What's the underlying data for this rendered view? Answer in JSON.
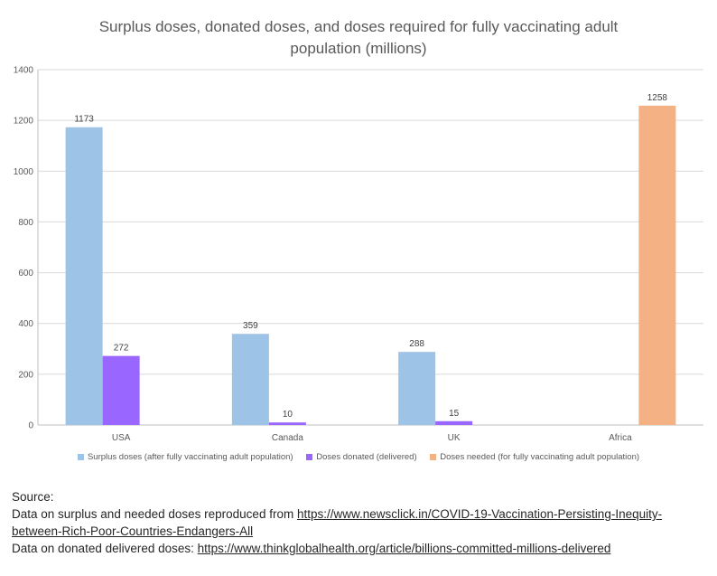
{
  "chart_data": {
    "type": "bar",
    "title_line1": "Surplus doses, donated doses, and doses required for fully vaccinating adult",
    "title_line2": "population (millions)",
    "categories": [
      "USA",
      "Canada",
      "UK",
      "Africa"
    ],
    "series": [
      {
        "name": "Surplus doses (after fully vaccinating adult population)",
        "color": "#9DC3E6",
        "values": [
          1173,
          359,
          288,
          null
        ]
      },
      {
        "name": "Doses donated (delivered)",
        "color": "#9966FF",
        "values": [
          272,
          10,
          15,
          null
        ]
      },
      {
        "name": "Doses needed (for fully vaccinating adult population)",
        "color": "#F4B183",
        "values": [
          null,
          null,
          null,
          1258
        ]
      }
    ],
    "ylim": [
      0,
      1400
    ],
    "yticks": [
      0,
      200,
      400,
      600,
      800,
      1000,
      1200,
      1400
    ],
    "grid": true,
    "legend_position": "bottom"
  },
  "source": {
    "heading": "Source:",
    "line1_prefix": "Data on surplus and needed doses reproduced from ",
    "line1_link": "https://www.newsclick.in/COVID-19-Vaccination-Persisting-Inequity-between-Rich-Poor-Countries-Endangers-All",
    "line2_prefix": "Data on donated delivered doses: ",
    "line2_link": "https://www.thinkglobalhealth.org/article/billions-committed-millions-delivered"
  }
}
